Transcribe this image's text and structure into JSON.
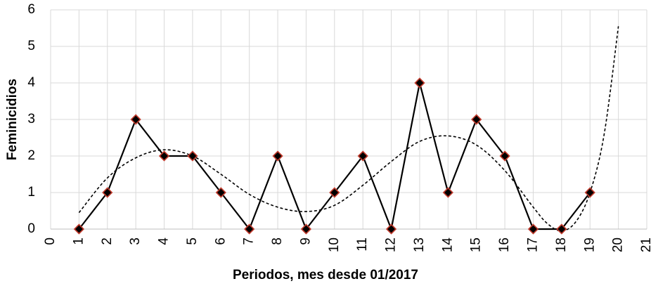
{
  "chart_data": {
    "type": "line",
    "x_label": "Periodos, mes desde 01/2017",
    "y_label": "Feminicidios",
    "series": [
      {
        "x": [
          1,
          2,
          3,
          4,
          5,
          6,
          7,
          8,
          9,
          10,
          11,
          12,
          13,
          14,
          15,
          16,
          17,
          18,
          19
        ],
        "values": [
          0,
          1,
          3,
          2,
          2,
          1,
          0,
          2,
          0,
          1,
          2,
          0,
          4,
          1,
          3,
          2,
          0,
          0,
          1
        ],
        "color": "#000000",
        "marker": "diamond",
        "marker_edge": "#c0392b"
      },
      {
        "x": [
          1,
          2,
          3,
          4,
          5,
          6,
          7,
          8,
          9,
          10,
          11,
          12,
          13,
          14,
          15,
          16,
          17,
          17.5,
          18,
          18.5,
          19,
          19.5,
          20
        ],
        "values": [
          0.45,
          1.4,
          1.95,
          2.17,
          2.0,
          1.5,
          0.95,
          0.6,
          0.48,
          0.65,
          1.2,
          1.85,
          2.4,
          2.55,
          2.3,
          1.6,
          0.6,
          0.15,
          -0.05,
          0.2,
          1.0,
          2.6,
          5.55
        ],
        "color": "#000000",
        "style": "dashed"
      }
    ],
    "xlim": [
      0,
      21
    ],
    "xticks": [
      0,
      1,
      2,
      3,
      4,
      5,
      6,
      7,
      8,
      9,
      10,
      11,
      12,
      13,
      14,
      15,
      16,
      17,
      18,
      19,
      20,
      21
    ],
    "ylim": [
      0,
      6
    ],
    "yticks": [
      0,
      1,
      2,
      3,
      4,
      5,
      6
    ],
    "grid": true
  }
}
